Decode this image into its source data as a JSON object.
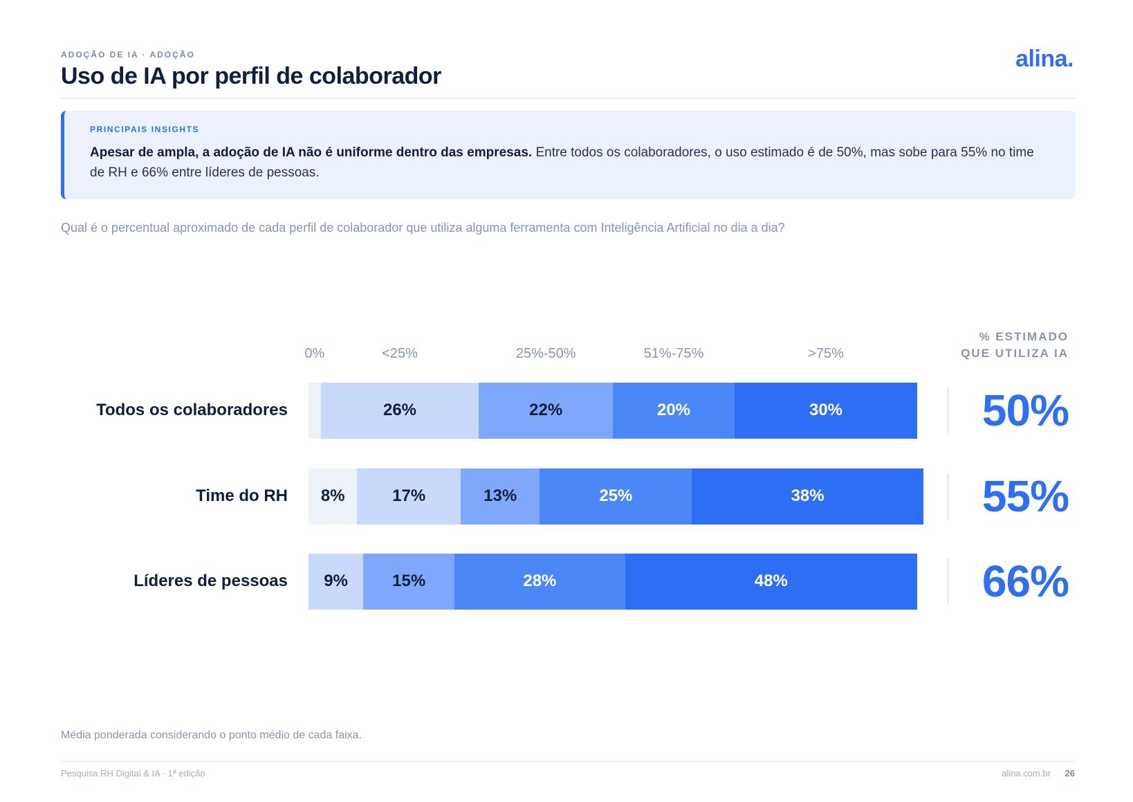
{
  "header": {
    "eyebrow": "ADOÇÃO DE IA · ADOÇÃO",
    "title": "Uso de IA por perfil de colaborador",
    "logo": "alina."
  },
  "insights": {
    "label": "PRINCIPAIS INSIGHTS",
    "bold": "Apesar de ampla, a adoção de IA não é uniforme dentro das empresas.",
    "text": " Entre todos os colaboradores, o uso estimado é de 50%, mas sobe para 55% no time de RH e 66% entre líderes de pessoas."
  },
  "question": "Qual é o percentual aproximado de cada perfil de colaborador que utiliza alguma ferramenta com Inteligência Artificial no dia a dia?",
  "estimate_header": [
    "% ESTIMADO",
    "QUE UTILIZA IA"
  ],
  "colors": {
    "0%": "#edf1f8",
    "<25%": "#c8d9fb",
    "25%-50%": "#7fa8fa",
    "51%-75%": "#4b87f7",
    ">75%": "#2d6ef5",
    "accent": "#2f6ff0"
  },
  "chart_data": {
    "type": "bar",
    "orientation": "horizontal",
    "stacked": true,
    "categories": [
      "Todos os colaboradores",
      "Time do RH",
      "Líderes de pessoas"
    ],
    "series": [
      {
        "name": "0%",
        "values": [
          2,
          8,
          0
        ],
        "labels": [
          "",
          "8%",
          ""
        ]
      },
      {
        "name": "<25%",
        "values": [
          26,
          17,
          9
        ],
        "labels": [
          "26%",
          "17%",
          "9%"
        ]
      },
      {
        "name": "25%-50%",
        "values": [
          22,
          13,
          15
        ],
        "labels": [
          "22%",
          "13%",
          "15%"
        ]
      },
      {
        "name": "51%-75%",
        "values": [
          20,
          25,
          28
        ],
        "labels": [
          "20%",
          "25%",
          "28%"
        ]
      },
      {
        "name": ">75%",
        "values": [
          30,
          38,
          48
        ],
        "labels": [
          "30%",
          "38%",
          "48%"
        ]
      }
    ],
    "estimated_use": [
      "50%",
      "55%",
      "66%"
    ],
    "xlim": [
      0,
      100
    ]
  },
  "note": "Média ponderada considerando o ponto médio de cada faixa.",
  "footer": {
    "left": "Pesquisa RH Digital & IA · 1ª edição",
    "site": "alina.com.br",
    "page": "26"
  }
}
